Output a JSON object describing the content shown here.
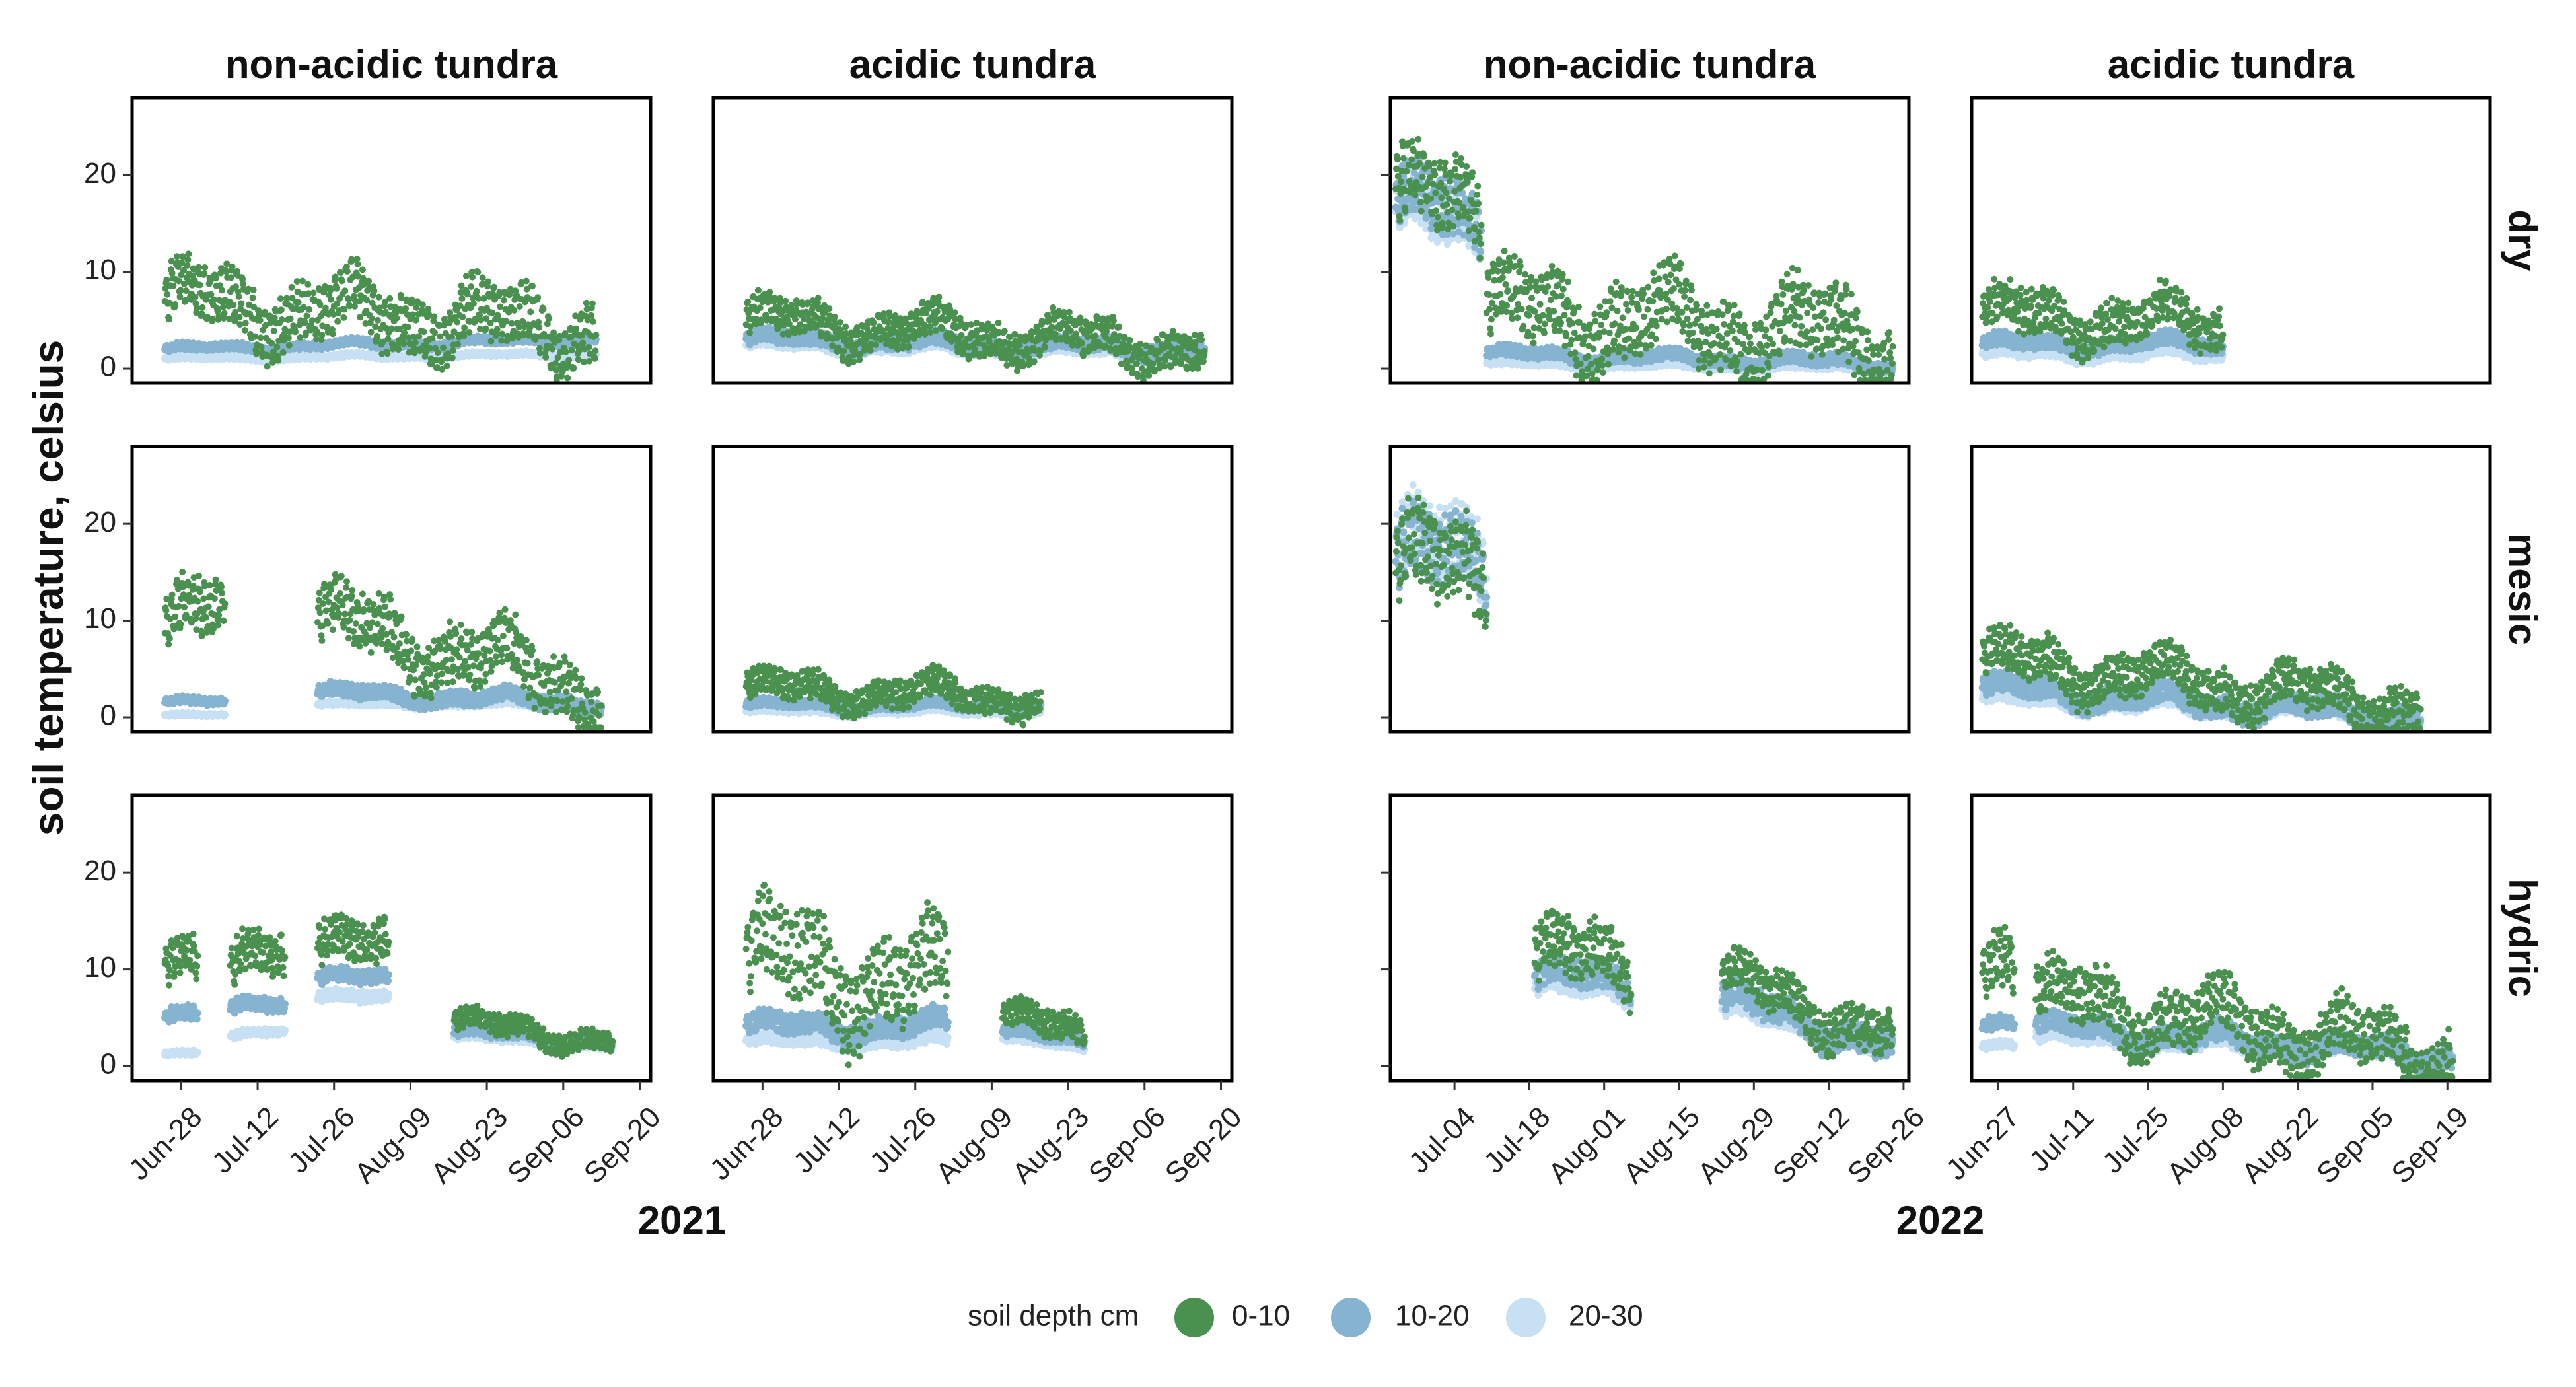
{
  "chart_data": {
    "type": "scatter",
    "y_axis_title": "soil temperature, celsius",
    "ylim": [
      -1.5,
      28
    ],
    "y_ticks": [
      0,
      10,
      20
    ],
    "legend": {
      "title": "soil depth cm",
      "entries": [
        {
          "name": "0-10",
          "color": "#4a9150"
        },
        {
          "name": "10-20",
          "color": "#86b3cf"
        },
        {
          "name": "20-30",
          "color": "#c7e0f4"
        }
      ],
      "placement": "bottom-center"
    },
    "rows": [
      "dry",
      "mesic",
      "hydric"
    ],
    "years": [
      {
        "label": "2021",
        "columns": [
          "non-acidic tundra",
          "acidic tundra"
        ],
        "x_start": "2021-06-19",
        "x_end": "2021-09-22",
        "x_ticks": [
          {
            "label": "Jun-28",
            "date": "2021-06-28"
          },
          {
            "label": "Jul-12",
            "date": "2021-07-12"
          },
          {
            "label": "Jul-26",
            "date": "2021-07-26"
          },
          {
            "label": "Aug-09",
            "date": "2021-08-09"
          },
          {
            "label": "Aug-23",
            "date": "2021-08-23"
          },
          {
            "label": "Sep-06",
            "date": "2021-09-06"
          },
          {
            "label": "Sep-20",
            "date": "2021-09-20"
          }
        ]
      },
      {
        "label": "2022",
        "columns": [
          "non-acidic tundra",
          "acidic tundra"
        ],
        "x_start": "2022-06-22",
        "x_end": "2022-09-27",
        "x_ticks": [
          {
            "label": "Jun-27",
            "date": "2022-06-27"
          },
          {
            "label": "Jul-04",
            "date": "2022-07-04"
          },
          {
            "label": "Jul-11",
            "date": "2022-07-11"
          },
          {
            "label": "Jul-18",
            "date": "2022-07-18"
          },
          {
            "label": "Jul-25",
            "date": "2022-07-25"
          },
          {
            "label": "Aug-01",
            "date": "2022-08-01"
          },
          {
            "label": "Aug-08",
            "date": "2022-08-08"
          },
          {
            "label": "Aug-15",
            "date": "2022-08-15"
          },
          {
            "label": "Aug-22",
            "date": "2022-08-22"
          },
          {
            "label": "Aug-29",
            "date": "2022-08-29"
          },
          {
            "label": "Sep-05",
            "date": "2022-09-05"
          },
          {
            "label": "Sep-12",
            "date": "2022-09-12"
          },
          {
            "label": "Sep-19",
            "date": "2022-09-19"
          },
          {
            "label": "Sep-26",
            "date": "2022-09-26"
          }
        ]
      }
    ],
    "panel_ticks": {
      "2021": [
        "Jun-28",
        "Jul-12",
        "Jul-26",
        "Aug-09",
        "Aug-23",
        "Sep-06",
        "Sep-20"
      ],
      "2022-non-acidic tundra": [
        "Jul-04",
        "Jul-18",
        "Aug-01",
        "Aug-15",
        "Aug-29",
        "Sep-12",
        "Sep-26"
      ],
      "2022-acidic tundra": [
        "Jun-27",
        "Jul-11",
        "Jul-25",
        "Aug-08",
        "Aug-22",
        "Sep-05",
        "Sep-19"
      ]
    },
    "panels": [
      {
        "year": "2021",
        "column": "non-acidic tundra",
        "row": "dry",
        "segments": [
          {
            "start": "2021-06-25",
            "end": "2021-09-12",
            "series": {
              "0-10": {
                "base": 7,
                "amp": 4,
                "trend": -3
              },
              "10-20": {
                "base": 2,
                "amp": 0.5,
                "trend": 1
              },
              "20-30": {
                "base": 1,
                "amp": 0.3,
                "trend": 0.5
              }
            }
          }
        ]
      },
      {
        "year": "2021",
        "column": "acidic tundra",
        "row": "dry",
        "segments": [
          {
            "start": "2021-06-25",
            "end": "2021-09-17",
            "series": {
              "0-10": {
                "base": 5,
                "amp": 2.5,
                "trend": -3
              },
              "10-20": {
                "base": 3,
                "amp": 1,
                "trend": -1
              },
              "20-30": {
                "base": 2.5,
                "amp": 0.8,
                "trend": -1
              }
            }
          }
        ]
      },
      {
        "year": "2021",
        "column": "non-acidic tundra",
        "row": "mesic",
        "segments": [
          {
            "start": "2021-06-25",
            "end": "2021-07-06",
            "series": {
              "0-10": {
                "base": 9,
                "amp": 4,
                "trend": 2
              },
              "10-20": {
                "base": 1.5,
                "amp": 0.5,
                "trend": 0
              },
              "20-30": {
                "base": 0.2,
                "amp": 0.2,
                "trend": 0
              }
            }
          },
          {
            "start": "2021-07-23",
            "end": "2021-09-13",
            "series": {
              "0-10": {
                "base": 10,
                "amp": 4,
                "trend": -7
              },
              "10-20": {
                "base": 2.5,
                "amp": 1,
                "trend": -1
              },
              "20-30": {
                "base": 1.3,
                "amp": 0.3,
                "trend": 0
              }
            }
          }
        ]
      },
      {
        "year": "2021",
        "column": "acidic tundra",
        "row": "mesic",
        "segments": [
          {
            "start": "2021-06-25",
            "end": "2021-08-18",
            "series": {
              "0-10": {
                "base": 3,
                "amp": 2,
                "trend": -1
              },
              "10-20": {
                "base": 1.2,
                "amp": 0.6,
                "trend": 0
              },
              "20-30": {
                "base": 0.6,
                "amp": 0.4,
                "trend": 0
              }
            }
          }
        ]
      },
      {
        "year": "2021",
        "column": "non-acidic tundra",
        "row": "hydric",
        "segments": [
          {
            "start": "2021-06-25",
            "end": "2021-07-01",
            "series": {
              "0-10": {
                "base": 10,
                "amp": 3,
                "trend": 0
              },
              "10-20": {
                "base": 5,
                "amp": 1,
                "trend": 0
              },
              "20-30": {
                "base": 1.2,
                "amp": 0.4,
                "trend": 0
              }
            }
          },
          {
            "start": "2021-07-07",
            "end": "2021-07-17",
            "series": {
              "0-10": {
                "base": 10,
                "amp": 3,
                "trend": 1
              },
              "10-20": {
                "base": 6,
                "amp": 1,
                "trend": 0
              },
              "20-30": {
                "base": 3,
                "amp": 0.5,
                "trend": 0.5
              }
            }
          },
          {
            "start": "2021-07-23",
            "end": "2021-08-05",
            "series": {
              "0-10": {
                "base": 12,
                "amp": 3,
                "trend": 0
              },
              "10-20": {
                "base": 9,
                "amp": 1,
                "trend": 0
              },
              "20-30": {
                "base": 7,
                "amp": 0.8,
                "trend": 0
              }
            }
          },
          {
            "start": "2021-08-17",
            "end": "2021-09-15",
            "series": {
              "0-10": {
                "base": 4.5,
                "amp": 1.5,
                "trend": -2
              },
              "10-20": {
                "base": 3.5,
                "amp": 0.8,
                "trend": -1
              },
              "20-30": {
                "base": 3,
                "amp": 0.5,
                "trend": -1
              }
            }
          }
        ]
      },
      {
        "year": "2021",
        "column": "acidic tundra",
        "row": "hydric",
        "segments": [
          {
            "start": "2021-06-25",
            "end": "2021-08-01",
            "series": {
              "0-10": {
                "base": 11,
                "amp": 6,
                "trend": -3
              },
              "10-20": {
                "base": 4,
                "amp": 1.5,
                "trend": 0
              },
              "20-30": {
                "base": 2.5,
                "amp": 0.8,
                "trend": 0
              }
            }
          },
          {
            "start": "2021-08-11",
            "end": "2021-08-26",
            "series": {
              "0-10": {
                "base": 5,
                "amp": 2,
                "trend": -2
              },
              "10-20": {
                "base": 3.5,
                "amp": 0.8,
                "trend": -1
              },
              "20-30": {
                "base": 2.8,
                "amp": 0.5,
                "trend": -1
              }
            }
          }
        ]
      },
      {
        "year": "2022",
        "column": "non-acidic tundra",
        "row": "dry",
        "segments": [
          {
            "start": "2022-06-23",
            "end": "2022-07-09",
            "series": {
              "0-10": {
                "base": 18,
                "amp": 5,
                "trend": -2
              },
              "10-20": {
                "base": 17,
                "amp": 4,
                "trend": -2
              },
              "20-30": {
                "base": 16,
                "amp": 4,
                "trend": -2
              }
            }
          },
          {
            "start": "2022-07-10",
            "end": "2022-09-24",
            "series": {
              "0-10": {
                "base": 6,
                "amp": 5,
                "trend": -3
              },
              "10-20": {
                "base": 1.5,
                "amp": 0.8,
                "trend": -1
              },
              "20-30": {
                "base": 0.5,
                "amp": 0.4,
                "trend": -0.5
              }
            }
          }
        ]
      },
      {
        "year": "2022",
        "column": "acidic tundra",
        "row": "dry",
        "segments": [
          {
            "start": "2022-06-24",
            "end": "2022-08-08",
            "series": {
              "0-10": {
                "base": 5.5,
                "amp": 3,
                "trend": -1
              },
              "10-20": {
                "base": 2.5,
                "amp": 1,
                "trend": 0
              },
              "20-30": {
                "base": 1.5,
                "amp": 0.8,
                "trend": 0
              }
            }
          }
        ]
      },
      {
        "year": "2022",
        "column": "non-acidic tundra",
        "row": "mesic",
        "segments": [
          {
            "start": "2022-06-23",
            "end": "2022-07-10",
            "series": {
              "0-10": {
                "base": 15,
                "amp": 6,
                "trend": 0
              },
              "10-20": {
                "base": 16,
                "amp": 5,
                "trend": 0
              },
              "20-30": {
                "base": 17,
                "amp": 5,
                "trend": 0
              }
            }
          }
        ]
      },
      {
        "year": "2022",
        "column": "acidic tundra",
        "row": "mesic",
        "segments": [
          {
            "start": "2022-06-24",
            "end": "2022-09-14",
            "series": {
              "0-10": {
                "base": 6,
                "amp": 3,
                "trend": -5
              },
              "10-20": {
                "base": 3,
                "amp": 1.5,
                "trend": -3
              },
              "20-30": {
                "base": 2,
                "amp": 1,
                "trend": -2
              }
            }
          }
        ]
      },
      {
        "year": "2022",
        "column": "non-acidic tundra",
        "row": "hydric",
        "segments": [
          {
            "start": "2022-07-19",
            "end": "2022-08-06",
            "series": {
              "0-10": {
                "base": 11,
                "amp": 4,
                "trend": 0
              },
              "10-20": {
                "base": 9,
                "amp": 2,
                "trend": 0
              },
              "20-30": {
                "base": 8,
                "amp": 1.5,
                "trend": 0
              }
            }
          },
          {
            "start": "2022-08-23",
            "end": "2022-09-24",
            "series": {
              "0-10": {
                "base": 9,
                "amp": 3,
                "trend": -6
              },
              "10-20": {
                "base": 7,
                "amp": 2,
                "trend": -5
              },
              "20-30": {
                "base": 6,
                "amp": 1.5,
                "trend": -4
              }
            }
          }
        ]
      },
      {
        "year": "2022",
        "column": "acidic tundra",
        "row": "hydric",
        "segments": [
          {
            "start": "2022-06-24",
            "end": "2022-06-30",
            "series": {
              "0-10": {
                "base": 9,
                "amp": 4,
                "trend": 0
              },
              "10-20": {
                "base": 4,
                "amp": 1,
                "trend": 0
              },
              "20-30": {
                "base": 2,
                "amp": 0.5,
                "trend": 0
              }
            }
          },
          {
            "start": "2022-07-04",
            "end": "2022-09-20",
            "series": {
              "0-10": {
                "base": 7,
                "amp": 4,
                "trend": -6
              },
              "10-20": {
                "base": 4,
                "amp": 1.5,
                "trend": -3
              },
              "20-30": {
                "base": 3,
                "amp": 1,
                "trend": -2
              }
            }
          }
        ]
      }
    ]
  }
}
